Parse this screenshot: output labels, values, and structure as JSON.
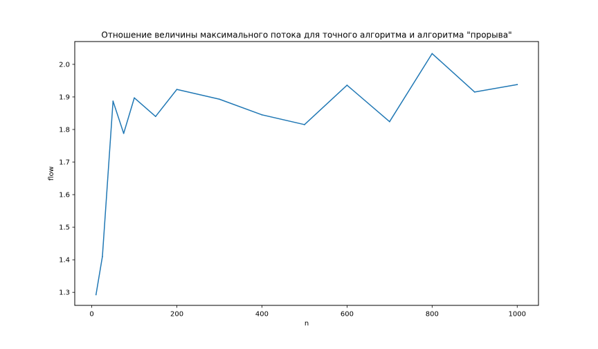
{
  "chart_data": {
    "type": "line",
    "title": "Отношение величины максимального потока для точного алгоритма и алгоритма \"прорыва\"",
    "xlabel": "n",
    "ylabel": "flow",
    "xlim": [
      -40,
      1050
    ],
    "ylim": [
      1.26,
      2.07
    ],
    "xticks": [
      0,
      200,
      400,
      600,
      800,
      1000
    ],
    "yticks": [
      1.3,
      1.4,
      1.5,
      1.6,
      1.7,
      1.8,
      1.9,
      2.0
    ],
    "grid": false,
    "series": [
      {
        "color": "#1f77b4",
        "x": [
          10,
          25,
          50,
          75,
          100,
          150,
          200,
          300,
          400,
          500,
          600,
          700,
          800,
          900,
          1000
        ],
        "y": [
          1.293,
          1.41,
          1.887,
          1.788,
          1.897,
          1.84,
          1.923,
          1.893,
          1.845,
          1.815,
          1.936,
          1.824,
          2.033,
          1.915,
          1.938
        ]
      }
    ]
  }
}
